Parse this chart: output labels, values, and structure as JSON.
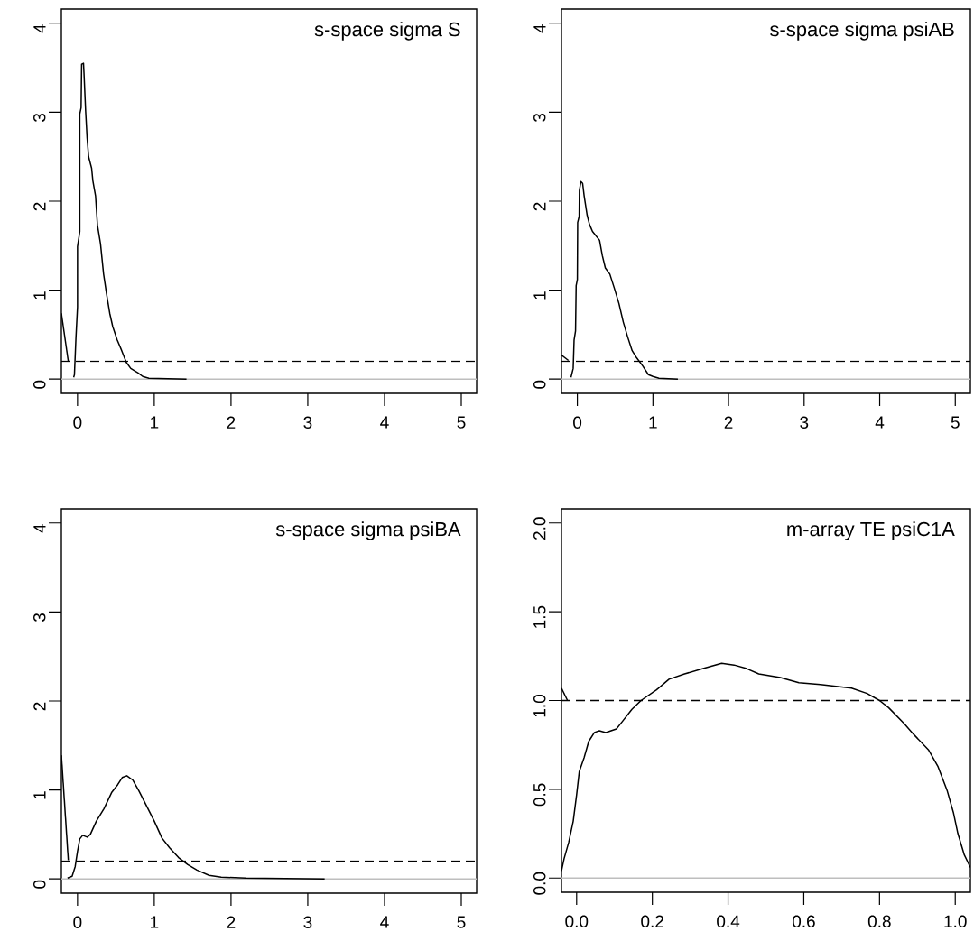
{
  "chart_data": [
    {
      "type": "line",
      "title": "s-space sigma S",
      "xlim": [
        -0.21,
        5.2
      ],
      "ylim": [
        -0.16,
        4.16
      ],
      "xticks": [
        0,
        1,
        2,
        3,
        4,
        5
      ],
      "yticks": [
        0,
        1,
        2,
        3,
        4
      ],
      "series": [
        {
          "color": "#bebebe",
          "x": [
            -0.21,
            5.2
          ],
          "values": [
            0,
            0
          ]
        },
        {
          "color": "#000000",
          "x": [
            -0.21,
            -0.12
          ],
          "values": [
            0.74,
            0.2
          ]
        },
        {
          "color": "#000000",
          "x": [
            -0.05,
            -0.04,
            -0.02,
            0,
            0,
            0.03,
            0.03,
            0.047,
            0.054,
            0.078,
            0.085,
            0.106,
            0.125,
            0.145,
            0.184,
            0.2,
            0.235,
            0.26,
            0.3,
            0.34,
            0.38,
            0.42,
            0.459,
            0.517,
            0.576,
            0.635,
            0.694,
            0.79,
            0.85,
            0.93,
            1.42
          ],
          "values": [
            0.02,
            0.05,
            0.47,
            0.81,
            1.49,
            1.66,
            2.98,
            3.05,
            3.54,
            3.55,
            3.43,
            3.01,
            2.71,
            2.5,
            2.37,
            2.23,
            2.06,
            1.73,
            1.52,
            1.18,
            0.95,
            0.74,
            0.59,
            0.44,
            0.32,
            0.19,
            0.12,
            0.07,
            0.03,
            0.01,
            0
          ]
        }
      ],
      "ref_lines": [
        {
          "axis": "y",
          "value": 0.2,
          "color": "#000000",
          "line_style": "dashed"
        }
      ]
    },
    {
      "type": "line",
      "title": "s-space sigma psiAB",
      "xlim": [
        -0.21,
        5.2
      ],
      "ylim": [
        -0.16,
        4.16
      ],
      "xticks": [
        0,
        1,
        2,
        3,
        4,
        5
      ],
      "yticks": [
        0,
        1,
        2,
        3,
        4
      ],
      "series": [
        {
          "color": "#bebebe",
          "x": [
            -0.21,
            5.2
          ],
          "values": [
            0,
            0
          ]
        },
        {
          "color": "#000000",
          "x": [
            -0.21,
            -0.118
          ],
          "values": [
            0.27,
            0.21
          ]
        },
        {
          "color": "#000000",
          "x": [
            -0.084,
            -0.055,
            -0.043,
            -0.024,
            -0.016,
            0,
            0.004,
            0.024,
            0.027,
            0.047,
            0.07,
            0.09,
            0.13,
            0.16,
            0.2,
            0.294,
            0.33,
            0.37,
            0.43,
            0.49,
            0.55,
            0.608,
            0.667,
            0.725,
            0.784,
            0.863,
            0.94,
            1.0,
            1.08,
            1.33
          ],
          "values": [
            0.02,
            0.12,
            0.44,
            0.54,
            1.05,
            1.12,
            1.76,
            1.83,
            2.12,
            2.22,
            2.2,
            2.06,
            1.84,
            1.74,
            1.66,
            1.56,
            1.39,
            1.25,
            1.18,
            1.02,
            0.85,
            0.64,
            0.47,
            0.32,
            0.24,
            0.15,
            0.05,
            0.03,
            0.01,
            0
          ]
        }
      ],
      "ref_lines": [
        {
          "axis": "y",
          "value": 0.2,
          "color": "#000000",
          "line_style": "dashed"
        }
      ]
    },
    {
      "type": "line",
      "title": "s-space sigma psiBA",
      "xlim": [
        -0.21,
        5.2
      ],
      "ylim": [
        -0.16,
        4.16
      ],
      "xticks": [
        0,
        1,
        2,
        3,
        4,
        5
      ],
      "yticks": [
        0,
        1,
        2,
        3,
        4
      ],
      "series": [
        {
          "color": "#bebebe",
          "x": [
            -0.21,
            5.2
          ],
          "values": [
            0,
            0
          ]
        },
        {
          "color": "#000000",
          "x": [
            -0.21,
            -0.12
          ],
          "values": [
            1.39,
            0.21
          ]
        },
        {
          "color": "#000000",
          "x": [
            -0.13,
            -0.07,
            -0.03,
            0,
            0.03,
            0.067,
            0.127,
            0.167,
            0.246,
            0.345,
            0.444,
            0.524,
            0.583,
            0.643,
            0.722,
            0.8,
            0.9,
            1.0,
            1.1,
            1.2,
            1.317,
            1.437,
            1.556,
            1.714,
            1.873,
            2.19,
            3.22
          ],
          "values": [
            0.01,
            0.03,
            0.14,
            0.31,
            0.45,
            0.49,
            0.47,
            0.5,
            0.65,
            0.79,
            0.97,
            1.06,
            1.14,
            1.16,
            1.11,
            0.99,
            0.82,
            0.65,
            0.46,
            0.35,
            0.24,
            0.16,
            0.1,
            0.04,
            0.02,
            0.01,
            0
          ]
        }
      ],
      "ref_lines": [
        {
          "axis": "y",
          "value": 0.2,
          "color": "#000000",
          "line_style": "dashed"
        }
      ]
    },
    {
      "type": "line",
      "title": "m-array TE psiC1A",
      "xlim": [
        -0.04,
        1.04
      ],
      "ylim": [
        -0.08,
        2.08
      ],
      "xticks": [
        {
          "value": 0,
          "label": "0.0"
        },
        0.2,
        0.4,
        0.6,
        0.8,
        {
          "value": 1,
          "label": "1.0"
        }
      ],
      "yticks": [
        {
          "value": 0,
          "label": "0.0"
        },
        0.5,
        {
          "value": 1,
          "label": "1.0"
        },
        1.5,
        {
          "value": 2,
          "label": "2.0"
        }
      ],
      "series": [
        {
          "color": "#bebebe",
          "x": [
            -0.04,
            1.04
          ],
          "values": [
            0,
            0
          ]
        },
        {
          "color": "#000000",
          "x": [
            -0.04,
            -0.024
          ],
          "values": [
            1.07,
            1.0
          ]
        },
        {
          "color": "#000000",
          "x": [
            -0.04,
            -0.033,
            -0.021,
            -0.009,
            0,
            0.007,
            0.02,
            0.032,
            0.047,
            0.06,
            0.077,
            0.105,
            0.12,
            0.146,
            0.17,
            0.211,
            0.244,
            0.285,
            0.334,
            0.383,
            0.416,
            0.449,
            0.481,
            0.538,
            0.587,
            0.644,
            0.685,
            0.726,
            0.767,
            0.8,
            0.824,
            0.865,
            0.89,
            0.93,
            0.954,
            0.979,
            0.995,
            1.007,
            1.024,
            1.04
          ],
          "values": [
            0.04,
            0.11,
            0.2,
            0.32,
            0.47,
            0.6,
            0.68,
            0.77,
            0.82,
            0.83,
            0.82,
            0.84,
            0.88,
            0.95,
            1.0,
            1.06,
            1.12,
            1.15,
            1.18,
            1.21,
            1.2,
            1.18,
            1.15,
            1.13,
            1.1,
            1.09,
            1.08,
            1.07,
            1.04,
            1.0,
            0.96,
            0.87,
            0.81,
            0.72,
            0.63,
            0.49,
            0.37,
            0.25,
            0.13,
            0.06
          ]
        }
      ],
      "ref_lines": [
        {
          "axis": "y",
          "value": 1,
          "color": "#000000",
          "line_style": "dashed"
        }
      ]
    }
  ]
}
